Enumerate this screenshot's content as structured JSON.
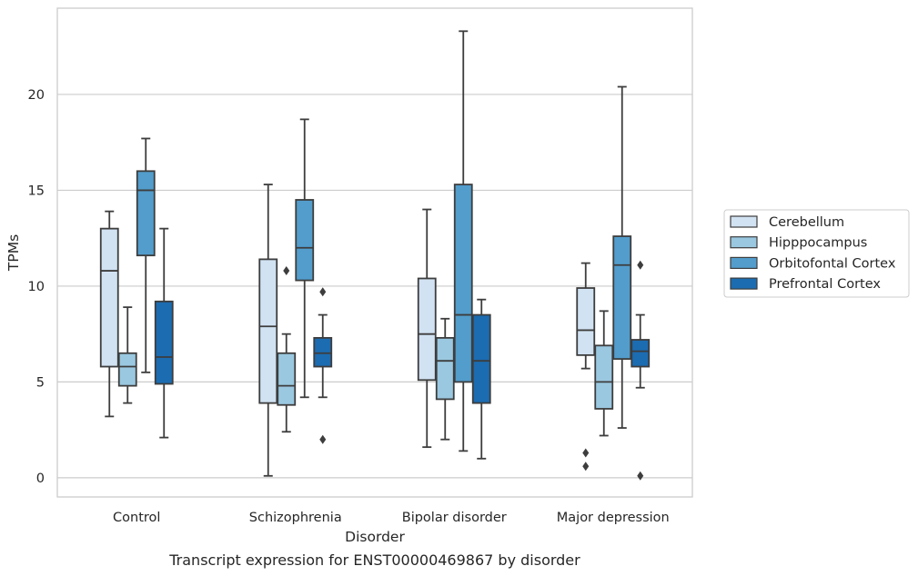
{
  "chart_data": {
    "type": "box",
    "caption": "Transcript expression for ENST00000469867 by disorder",
    "xlabel": "Disorder",
    "ylabel": "TPMs",
    "ylim": [
      -1,
      24.5
    ],
    "yticks": [
      0,
      5,
      10,
      15,
      20
    ],
    "grid": "horizontal",
    "legend_position": "right",
    "categories": [
      "Control",
      "Schizophrenia",
      "Bipolar disorder",
      "Major depression"
    ],
    "series": [
      {
        "name": "Cerebellum",
        "color": "#d1e2f2",
        "boxes": [
          {
            "whislo": 3.2,
            "q1": 5.8,
            "med": 10.8,
            "q3": 13.0,
            "whishi": 13.9,
            "fliers": []
          },
          {
            "whislo": 0.1,
            "q1": 3.9,
            "med": 7.9,
            "q3": 11.4,
            "whishi": 15.3,
            "fliers": []
          },
          {
            "whislo": 1.6,
            "q1": 5.1,
            "med": 7.5,
            "q3": 10.4,
            "whishi": 14.0,
            "fliers": []
          },
          {
            "whislo": 5.7,
            "q1": 6.4,
            "med": 7.7,
            "q3": 9.9,
            "whishi": 11.2,
            "fliers": [
              1.3,
              0.6
            ]
          }
        ]
      },
      {
        "name": "Hipppocampus",
        "color": "#9ac8e0",
        "boxes": [
          {
            "whislo": 3.9,
            "q1": 4.8,
            "med": 5.8,
            "q3": 6.5,
            "whishi": 8.9,
            "fliers": []
          },
          {
            "whislo": 2.4,
            "q1": 3.8,
            "med": 4.8,
            "q3": 6.5,
            "whishi": 7.5,
            "fliers": [
              10.8
            ]
          },
          {
            "whislo": 2.0,
            "q1": 4.1,
            "med": 6.1,
            "q3": 7.3,
            "whishi": 8.3,
            "fliers": []
          },
          {
            "whislo": 2.2,
            "q1": 3.6,
            "med": 5.0,
            "q3": 6.9,
            "whishi": 8.7,
            "fliers": []
          }
        ]
      },
      {
        "name": "Orbitofontal Cortex",
        "color": "#529dcc",
        "boxes": [
          {
            "whislo": 5.5,
            "q1": 11.6,
            "med": 15.0,
            "q3": 16.0,
            "whishi": 17.7,
            "fliers": []
          },
          {
            "whislo": 4.2,
            "q1": 10.3,
            "med": 12.0,
            "q3": 14.5,
            "whishi": 18.7,
            "fliers": []
          },
          {
            "whislo": 1.4,
            "q1": 5.0,
            "med": 8.5,
            "q3": 15.3,
            "whishi": 23.3,
            "fliers": []
          },
          {
            "whislo": 2.6,
            "q1": 6.2,
            "med": 11.1,
            "q3": 12.6,
            "whishi": 20.4,
            "fliers": []
          }
        ]
      },
      {
        "name": "Prefrontal Cortex",
        "color": "#1c6cb1",
        "boxes": [
          {
            "whislo": 2.1,
            "q1": 4.9,
            "med": 6.3,
            "q3": 9.2,
            "whishi": 13.0,
            "fliers": []
          },
          {
            "whislo": 4.2,
            "q1": 5.8,
            "med": 6.5,
            "q3": 7.3,
            "whishi": 8.5,
            "fliers": [
              9.7,
              2.0
            ]
          },
          {
            "whislo": 1.0,
            "q1": 3.9,
            "med": 6.1,
            "q3": 8.5,
            "whishi": 9.3,
            "fliers": []
          },
          {
            "whislo": 4.7,
            "q1": 5.8,
            "med": 6.6,
            "q3": 7.2,
            "whishi": 8.5,
            "fliers": [
              11.1,
              0.1
            ]
          }
        ]
      }
    ]
  }
}
